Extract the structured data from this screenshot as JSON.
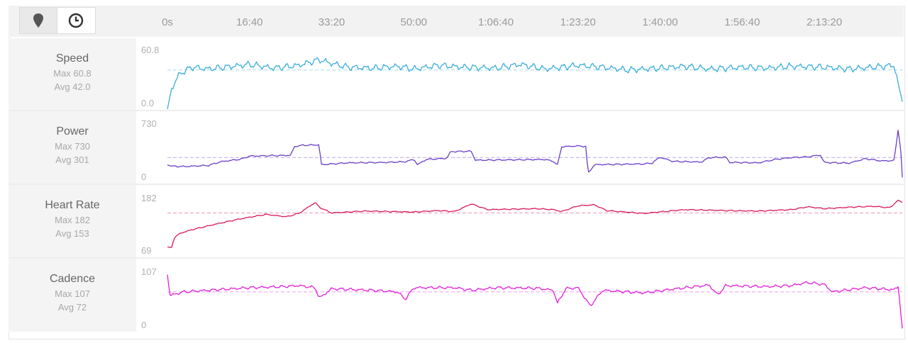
{
  "toolbar": {
    "map_button_icon": "map-pin-icon",
    "time_button_icon": "clock-icon"
  },
  "x_axis": {
    "tick_labels": [
      "0s",
      "16:40",
      "33:20",
      "50:00",
      "1:06:40",
      "1:23:20",
      "1:40:00",
      "1:56:40",
      "2:13:20"
    ],
    "tick_seconds": [
      0,
      1000,
      2000,
      3000,
      4000,
      5000,
      6000,
      7000,
      8000
    ],
    "duration_seconds": 8950
  },
  "metrics": [
    {
      "name": "Speed",
      "max_label": "Max 60.8",
      "avg_label": "Avg 42.0",
      "y_top_label": "60.8",
      "y_bottom_label": "0.0",
      "color": "#3aaed8"
    },
    {
      "name": "Power",
      "max_label": "Max 730",
      "avg_label": "Avg 301",
      "y_top_label": "730",
      "y_bottom_label": "0",
      "color": "#6a3fc8"
    },
    {
      "name": "Heart Rate",
      "max_label": "Max 182",
      "avg_label": "Avg 153",
      "y_top_label": "182",
      "y_bottom_label": "69",
      "color": "#d81b56"
    },
    {
      "name": "Cadence",
      "max_label": "Max 107",
      "avg_label": "Avg 72",
      "y_top_label": "107",
      "y_bottom_label": "0",
      "color": "#e020d8"
    }
  ],
  "chart_data": [
    {
      "type": "line",
      "title": "Speed",
      "x_unit": "seconds",
      "ylim": [
        0,
        60.8
      ],
      "average": 42.0,
      "color": "#3aaed8",
      "series": [
        {
          "name": "Speed",
          "points": [
            [
              0,
              0
            ],
            [
              50,
              22
            ],
            [
              150,
              38
            ],
            [
              300,
              45
            ],
            [
              500,
              43
            ],
            [
              800,
              46
            ],
            [
              1000,
              48
            ],
            [
              1300,
              44
            ],
            [
              1600,
              47
            ],
            [
              1850,
              53
            ],
            [
              2000,
              49
            ],
            [
              2200,
              45
            ],
            [
              2500,
              44
            ],
            [
              2800,
              46
            ],
            [
              3000,
              43
            ],
            [
              3300,
              47
            ],
            [
              3600,
              45
            ],
            [
              4000,
              44
            ],
            [
              4300,
              48
            ],
            [
              4600,
              43
            ],
            [
              5000,
              47
            ],
            [
              5300,
              45
            ],
            [
              5600,
              42
            ],
            [
              6000,
              44
            ],
            [
              6300,
              46
            ],
            [
              6600,
              43
            ],
            [
              7000,
              45
            ],
            [
              7300,
              44
            ],
            [
              7600,
              46
            ],
            [
              8000,
              45
            ],
            [
              8300,
              43
            ],
            [
              8600,
              45
            ],
            [
              8850,
              47
            ],
            [
              8950,
              8
            ]
          ]
        }
      ]
    },
    {
      "type": "line",
      "title": "Power",
      "x_unit": "seconds",
      "ylim": [
        0,
        730
      ],
      "average": 301,
      "color": "#6a3fc8",
      "series": [
        {
          "name": "Power",
          "points": [
            [
              0,
              200
            ],
            [
              50,
              185
            ],
            [
              200,
              180
            ],
            [
              500,
              195
            ],
            [
              650,
              245
            ],
            [
              900,
              280
            ],
            [
              1000,
              320
            ],
            [
              1250,
              325
            ],
            [
              1500,
              330
            ],
            [
              1550,
              450
            ],
            [
              1650,
              465
            ],
            [
              1850,
              470
            ],
            [
              1870,
              205
            ],
            [
              2200,
              230
            ],
            [
              2650,
              235
            ],
            [
              2900,
              245
            ],
            [
              3000,
              275
            ],
            [
              3050,
              205
            ],
            [
              3150,
              275
            ],
            [
              3400,
              290
            ],
            [
              3450,
              380
            ],
            [
              3700,
              385
            ],
            [
              3750,
              265
            ],
            [
              4200,
              270
            ],
            [
              4600,
              275
            ],
            [
              4700,
              250
            ],
            [
              4750,
              200
            ],
            [
              4800,
              445
            ],
            [
              5000,
              455
            ],
            [
              5100,
              450
            ],
            [
              5120,
              85
            ],
            [
              5200,
              205
            ],
            [
              5800,
              215
            ],
            [
              5900,
              225
            ],
            [
              6000,
              305
            ],
            [
              6150,
              250
            ],
            [
              6500,
              240
            ],
            [
              6600,
              300
            ],
            [
              6800,
              305
            ],
            [
              6850,
              235
            ],
            [
              7200,
              230
            ],
            [
              7400,
              275
            ],
            [
              7600,
              300
            ],
            [
              7800,
              310
            ],
            [
              7950,
              335
            ],
            [
              8000,
              235
            ],
            [
              8300,
              225
            ],
            [
              8500,
              285
            ],
            [
              8700,
              255
            ],
            [
              8850,
              260
            ],
            [
              8900,
              680
            ],
            [
              8940,
              300
            ],
            [
              8950,
              35
            ]
          ]
        }
      ]
    },
    {
      "type": "line",
      "title": "Heart Rate",
      "x_unit": "seconds",
      "ylim": [
        69,
        182
      ],
      "average": 153,
      "color": "#d81b56",
      "series": [
        {
          "name": "Heart Rate",
          "points": [
            [
              0,
              82
            ],
            [
              50,
              80
            ],
            [
              80,
              100
            ],
            [
              150,
              110
            ],
            [
              300,
              118
            ],
            [
              600,
              130
            ],
            [
              900,
              141
            ],
            [
              1200,
              150
            ],
            [
              1450,
              145
            ],
            [
              1600,
              152
            ],
            [
              1800,
              175
            ],
            [
              1850,
              165
            ],
            [
              2000,
              153
            ],
            [
              2400,
              157
            ],
            [
              3000,
              155
            ],
            [
              3300,
              158
            ],
            [
              3500,
              156
            ],
            [
              3700,
              172
            ],
            [
              3900,
              160
            ],
            [
              4500,
              162
            ],
            [
              4700,
              160
            ],
            [
              4800,
              156
            ],
            [
              5000,
              168
            ],
            [
              5200,
              170
            ],
            [
              5350,
              158
            ],
            [
              5800,
              152
            ],
            [
              6300,
              160
            ],
            [
              6800,
              158
            ],
            [
              7200,
              157
            ],
            [
              7600,
              160
            ],
            [
              7800,
              166
            ],
            [
              8000,
              162
            ],
            [
              8300,
              165
            ],
            [
              8600,
              167
            ],
            [
              8800,
              164
            ],
            [
              8900,
              180
            ],
            [
              8950,
              175
            ]
          ]
        }
      ]
    },
    {
      "type": "line",
      "title": "Cadence",
      "x_unit": "seconds",
      "ylim": [
        0,
        107
      ],
      "average": 72,
      "color": "#e020d8",
      "series": [
        {
          "name": "Cadence",
          "points": [
            [
              0,
              105
            ],
            [
              30,
              65
            ],
            [
              200,
              72
            ],
            [
              600,
              76
            ],
            [
              1000,
              80
            ],
            [
              1400,
              82
            ],
            [
              1600,
              84
            ],
            [
              1800,
              80
            ],
            [
              1850,
              60
            ],
            [
              2000,
              78
            ],
            [
              2500,
              75
            ],
            [
              2800,
              72
            ],
            [
              2900,
              58
            ],
            [
              3000,
              80
            ],
            [
              3500,
              80
            ],
            [
              3700,
              75
            ],
            [
              4000,
              80
            ],
            [
              4500,
              79
            ],
            [
              4700,
              75
            ],
            [
              4750,
              50
            ],
            [
              4850,
              78
            ],
            [
              5000,
              80
            ],
            [
              5150,
              45
            ],
            [
              5300,
              75
            ],
            [
              5800,
              70
            ],
            [
              6200,
              78
            ],
            [
              6600,
              85
            ],
            [
              6700,
              66
            ],
            [
              6800,
              84
            ],
            [
              7300,
              82
            ],
            [
              7600,
              84
            ],
            [
              7800,
              90
            ],
            [
              8000,
              86
            ],
            [
              8100,
              72
            ],
            [
              8500,
              80
            ],
            [
              8850,
              76
            ],
            [
              8900,
              82
            ],
            [
              8950,
              2
            ]
          ]
        }
      ]
    }
  ]
}
